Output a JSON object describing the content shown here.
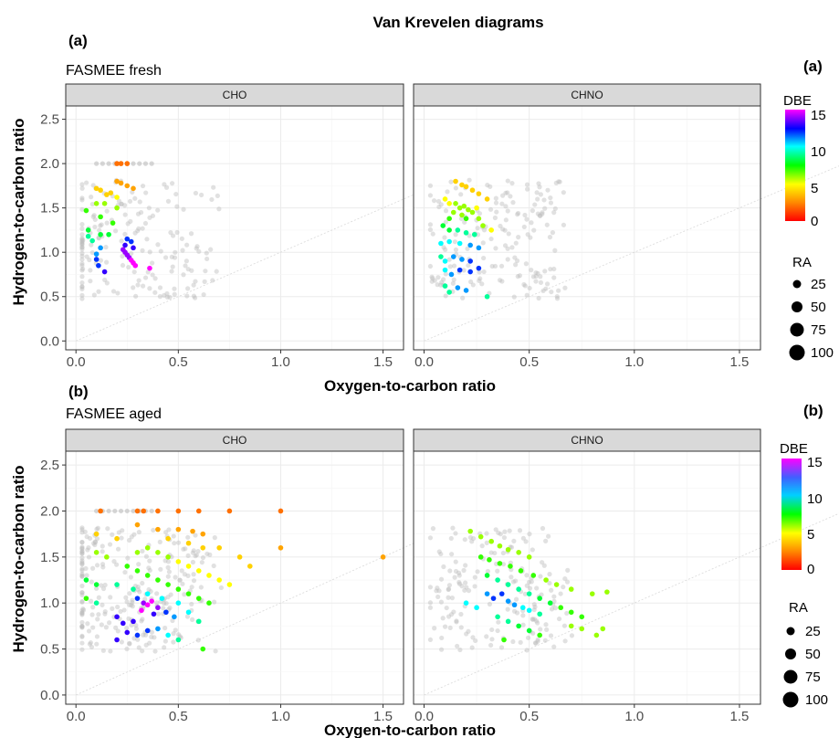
{
  "title": "Van Krevelen diagrams",
  "colors": {
    "panel_border": "#333333",
    "strip_fill": "#d9d9d9",
    "grid": "#ebebeb",
    "background_point": "#bdbdbd",
    "one_to_one_line": "#d9d9d9",
    "dbe_scale": [
      "#ff0000",
      "#ff8c00",
      "#ffff00",
      "#00ff00",
      "#00ffff",
      "#0000ff",
      "#ff00ff"
    ]
  },
  "axes": {
    "xlabel": "Oxygen-to-carbon ratio",
    "ylabel": "Hydrogen-to-carbon ratio",
    "xticks": [
      "0.0",
      "0.5",
      "1.0",
      "1.5"
    ],
    "yticks": [
      "0.0",
      "0.5",
      "1.0",
      "1.5",
      "2.0",
      "2.5"
    ]
  },
  "rows": [
    {
      "tag": "(a)",
      "subtitle": "FASMEE fresh",
      "legend_tag": "(a)",
      "dbe_title": "DBE",
      "dbe_ticks": [
        "15",
        "10",
        "5",
        "0"
      ],
      "ra_title": "RA",
      "ra_ticks": [
        "25",
        "50",
        "75",
        "100"
      ]
    },
    {
      "tag": "(b)",
      "subtitle": "FASMEE aged",
      "legend_tag": "(b)",
      "dbe_title": "DBE",
      "dbe_ticks": [
        "15",
        "10",
        "5",
        "0"
      ],
      "ra_title": "RA",
      "ra_ticks": [
        "25",
        "50",
        "75",
        "100"
      ]
    }
  ],
  "chart_data": [
    {
      "type": "scatter",
      "title": "FASMEE fresh — CHO",
      "panel": "CHO",
      "xlabel": "Oxygen-to-carbon ratio",
      "ylabel": "Hydrogen-to-carbon ratio",
      "xlim": [
        -0.05,
        1.6
      ],
      "ylim": [
        -0.1,
        2.65
      ],
      "grid": true,
      "color_by": "DBE",
      "points": [
        {
          "x": 0.2,
          "y": 2.0,
          "dbe": 2
        },
        {
          "x": 0.22,
          "y": 2.0,
          "dbe": 2
        },
        {
          "x": 0.25,
          "y": 2.0,
          "dbe": 2
        },
        {
          "x": 0.2,
          "y": 1.8,
          "dbe": 3
        },
        {
          "x": 0.22,
          "y": 1.78,
          "dbe": 3
        },
        {
          "x": 0.25,
          "y": 1.75,
          "dbe": 3
        },
        {
          "x": 0.28,
          "y": 1.72,
          "dbe": 3
        },
        {
          "x": 0.1,
          "y": 1.72,
          "dbe": 4
        },
        {
          "x": 0.12,
          "y": 1.7,
          "dbe": 4
        },
        {
          "x": 0.15,
          "y": 1.65,
          "dbe": 4
        },
        {
          "x": 0.17,
          "y": 1.67,
          "dbe": 4
        },
        {
          "x": 0.2,
          "y": 1.62,
          "dbe": 5
        },
        {
          "x": 0.1,
          "y": 1.55,
          "dbe": 6
        },
        {
          "x": 0.14,
          "y": 1.55,
          "dbe": 6
        },
        {
          "x": 0.2,
          "y": 1.5,
          "dbe": 6
        },
        {
          "x": 0.05,
          "y": 1.47,
          "dbe": 7
        },
        {
          "x": 0.12,
          "y": 1.4,
          "dbe": 7
        },
        {
          "x": 0.18,
          "y": 1.33,
          "dbe": 7
        },
        {
          "x": 0.06,
          "y": 1.25,
          "dbe": 8
        },
        {
          "x": 0.12,
          "y": 1.2,
          "dbe": 8
        },
        {
          "x": 0.16,
          "y": 1.2,
          "dbe": 8
        },
        {
          "x": 0.08,
          "y": 1.13,
          "dbe": 9
        },
        {
          "x": 0.06,
          "y": 1.18,
          "dbe": 9
        },
        {
          "x": 0.12,
          "y": 1.05,
          "dbe": 11
        },
        {
          "x": 0.1,
          "y": 0.98,
          "dbe": 11
        },
        {
          "x": 0.1,
          "y": 0.92,
          "dbe": 12
        },
        {
          "x": 0.11,
          "y": 0.85,
          "dbe": 12
        },
        {
          "x": 0.14,
          "y": 0.78,
          "dbe": 13
        },
        {
          "x": 0.25,
          "y": 1.15,
          "dbe": 12
        },
        {
          "x": 0.27,
          "y": 1.12,
          "dbe": 12
        },
        {
          "x": 0.28,
          "y": 1.05,
          "dbe": 13
        },
        {
          "x": 0.24,
          "y": 1.08,
          "dbe": 13
        },
        {
          "x": 0.23,
          "y": 1.03,
          "dbe": 14
        },
        {
          "x": 0.24,
          "y": 1.0,
          "dbe": 14
        },
        {
          "x": 0.25,
          "y": 0.97,
          "dbe": 14
        },
        {
          "x": 0.26,
          "y": 0.94,
          "dbe": 14
        },
        {
          "x": 0.27,
          "y": 0.91,
          "dbe": 15
        },
        {
          "x": 0.28,
          "y": 0.88,
          "dbe": 15
        },
        {
          "x": 0.29,
          "y": 0.85,
          "dbe": 15
        },
        {
          "x": 0.36,
          "y": 0.82,
          "dbe": 15
        }
      ]
    },
    {
      "type": "scatter",
      "title": "FASMEE fresh — CHNO",
      "panel": "CHNO",
      "xlabel": "Oxygen-to-carbon ratio",
      "ylabel": "Hydrogen-to-carbon ratio",
      "xlim": [
        -0.05,
        1.6
      ],
      "ylim": [
        -0.1,
        2.65
      ],
      "grid": true,
      "color_by": "DBE",
      "points": [
        {
          "x": 0.15,
          "y": 1.8,
          "dbe": 4
        },
        {
          "x": 0.18,
          "y": 1.76,
          "dbe": 4
        },
        {
          "x": 0.2,
          "y": 1.74,
          "dbe": 4
        },
        {
          "x": 0.23,
          "y": 1.7,
          "dbe": 4
        },
        {
          "x": 0.26,
          "y": 1.66,
          "dbe": 4
        },
        {
          "x": 0.3,
          "y": 1.6,
          "dbe": 4
        },
        {
          "x": 0.1,
          "y": 1.6,
          "dbe": 5
        },
        {
          "x": 0.12,
          "y": 1.55,
          "dbe": 5
        },
        {
          "x": 0.15,
          "y": 1.55,
          "dbe": 6
        },
        {
          "x": 0.17,
          "y": 1.5,
          "dbe": 6
        },
        {
          "x": 0.19,
          "y": 1.52,
          "dbe": 6
        },
        {
          "x": 0.21,
          "y": 1.48,
          "dbe": 6
        },
        {
          "x": 0.23,
          "y": 1.45,
          "dbe": 6
        },
        {
          "x": 0.25,
          "y": 1.5,
          "dbe": 5
        },
        {
          "x": 0.18,
          "y": 1.42,
          "dbe": 6
        },
        {
          "x": 0.14,
          "y": 1.45,
          "dbe": 6
        },
        {
          "x": 0.12,
          "y": 1.38,
          "dbe": 7
        },
        {
          "x": 0.2,
          "y": 1.38,
          "dbe": 7
        },
        {
          "x": 0.26,
          "y": 1.38,
          "dbe": 6
        },
        {
          "x": 0.28,
          "y": 1.3,
          "dbe": 6
        },
        {
          "x": 0.32,
          "y": 1.25,
          "dbe": 5
        },
        {
          "x": 0.09,
          "y": 1.3,
          "dbe": 8
        },
        {
          "x": 0.12,
          "y": 1.25,
          "dbe": 8
        },
        {
          "x": 0.16,
          "y": 1.25,
          "dbe": 9
        },
        {
          "x": 0.2,
          "y": 1.22,
          "dbe": 9
        },
        {
          "x": 0.24,
          "y": 1.2,
          "dbe": 9
        },
        {
          "x": 0.08,
          "y": 1.1,
          "dbe": 10
        },
        {
          "x": 0.12,
          "y": 1.12,
          "dbe": 10
        },
        {
          "x": 0.17,
          "y": 1.1,
          "dbe": 10
        },
        {
          "x": 0.22,
          "y": 1.08,
          "dbe": 11
        },
        {
          "x": 0.26,
          "y": 1.05,
          "dbe": 11
        },
        {
          "x": 0.08,
          "y": 0.95,
          "dbe": 9
        },
        {
          "x": 0.1,
          "y": 0.9,
          "dbe": 10
        },
        {
          "x": 0.14,
          "y": 0.95,
          "dbe": 11
        },
        {
          "x": 0.18,
          "y": 0.92,
          "dbe": 11
        },
        {
          "x": 0.22,
          "y": 0.9,
          "dbe": 12
        },
        {
          "x": 0.1,
          "y": 0.8,
          "dbe": 10
        },
        {
          "x": 0.13,
          "y": 0.75,
          "dbe": 11
        },
        {
          "x": 0.17,
          "y": 0.8,
          "dbe": 12
        },
        {
          "x": 0.22,
          "y": 0.78,
          "dbe": 12
        },
        {
          "x": 0.26,
          "y": 0.82,
          "dbe": 12
        },
        {
          "x": 0.1,
          "y": 0.62,
          "dbe": 9
        },
        {
          "x": 0.12,
          "y": 0.55,
          "dbe": 9
        },
        {
          "x": 0.16,
          "y": 0.6,
          "dbe": 11
        },
        {
          "x": 0.2,
          "y": 0.57,
          "dbe": 11
        },
        {
          "x": 0.3,
          "y": 0.5,
          "dbe": 9
        }
      ]
    },
    {
      "type": "scatter",
      "title": "FASMEE aged — CHO",
      "panel": "CHO",
      "xlabel": "Oxygen-to-carbon ratio",
      "ylabel": "Hydrogen-to-carbon ratio",
      "xlim": [
        -0.05,
        1.6
      ],
      "ylim": [
        -0.1,
        2.65
      ],
      "grid": true,
      "color_by": "DBE",
      "points": [
        {
          "x": 0.12,
          "y": 2.0,
          "dbe": 2
        },
        {
          "x": 0.3,
          "y": 2.0,
          "dbe": 2
        },
        {
          "x": 0.33,
          "y": 2.0,
          "dbe": 2
        },
        {
          "x": 0.4,
          "y": 2.0,
          "dbe": 2
        },
        {
          "x": 0.5,
          "y": 2.0,
          "dbe": 2
        },
        {
          "x": 0.6,
          "y": 2.0,
          "dbe": 2
        },
        {
          "x": 0.75,
          "y": 2.0,
          "dbe": 2
        },
        {
          "x": 1.0,
          "y": 2.0,
          "dbe": 2
        },
        {
          "x": 0.3,
          "y": 1.85,
          "dbe": 3
        },
        {
          "x": 0.4,
          "y": 1.8,
          "dbe": 3
        },
        {
          "x": 0.5,
          "y": 1.8,
          "dbe": 3
        },
        {
          "x": 0.57,
          "y": 1.78,
          "dbe": 3
        },
        {
          "x": 0.62,
          "y": 1.75,
          "dbe": 3
        },
        {
          "x": 1.5,
          "y": 1.5,
          "dbe": 3
        },
        {
          "x": 1.0,
          "y": 1.6,
          "dbe": 3
        },
        {
          "x": 0.1,
          "y": 1.75,
          "dbe": 4
        },
        {
          "x": 0.2,
          "y": 1.7,
          "dbe": 4
        },
        {
          "x": 0.45,
          "y": 1.7,
          "dbe": 4
        },
        {
          "x": 0.55,
          "y": 1.65,
          "dbe": 4
        },
        {
          "x": 0.62,
          "y": 1.6,
          "dbe": 4
        },
        {
          "x": 0.7,
          "y": 1.6,
          "dbe": 4
        },
        {
          "x": 0.8,
          "y": 1.5,
          "dbe": 4
        },
        {
          "x": 0.85,
          "y": 1.4,
          "dbe": 4
        },
        {
          "x": 0.1,
          "y": 1.55,
          "dbe": 6
        },
        {
          "x": 0.15,
          "y": 1.5,
          "dbe": 6
        },
        {
          "x": 0.3,
          "y": 1.55,
          "dbe": 6
        },
        {
          "x": 0.35,
          "y": 1.6,
          "dbe": 6
        },
        {
          "x": 0.4,
          "y": 1.55,
          "dbe": 6
        },
        {
          "x": 0.45,
          "y": 1.5,
          "dbe": 6
        },
        {
          "x": 0.5,
          "y": 1.45,
          "dbe": 5
        },
        {
          "x": 0.55,
          "y": 1.4,
          "dbe": 5
        },
        {
          "x": 0.6,
          "y": 1.35,
          "dbe": 5
        },
        {
          "x": 0.65,
          "y": 1.3,
          "dbe": 5
        },
        {
          "x": 0.7,
          "y": 1.25,
          "dbe": 5
        },
        {
          "x": 0.75,
          "y": 1.2,
          "dbe": 5
        },
        {
          "x": 0.25,
          "y": 1.4,
          "dbe": 7
        },
        {
          "x": 0.3,
          "y": 1.35,
          "dbe": 7
        },
        {
          "x": 0.35,
          "y": 1.3,
          "dbe": 7
        },
        {
          "x": 0.4,
          "y": 1.25,
          "dbe": 7
        },
        {
          "x": 0.45,
          "y": 1.2,
          "dbe": 7
        },
        {
          "x": 0.5,
          "y": 1.15,
          "dbe": 7
        },
        {
          "x": 0.55,
          "y": 1.1,
          "dbe": 7
        },
        {
          "x": 0.6,
          "y": 1.05,
          "dbe": 7
        },
        {
          "x": 0.65,
          "y": 1.0,
          "dbe": 7
        },
        {
          "x": 0.05,
          "y": 1.25,
          "dbe": 8
        },
        {
          "x": 0.1,
          "y": 1.2,
          "dbe": 8
        },
        {
          "x": 0.2,
          "y": 1.2,
          "dbe": 9
        },
        {
          "x": 0.28,
          "y": 1.15,
          "dbe": 9
        },
        {
          "x": 0.35,
          "y": 1.1,
          "dbe": 10
        },
        {
          "x": 0.42,
          "y": 1.05,
          "dbe": 10
        },
        {
          "x": 0.5,
          "y": 1.0,
          "dbe": 10
        },
        {
          "x": 0.55,
          "y": 0.9,
          "dbe": 10
        },
        {
          "x": 0.6,
          "y": 0.8,
          "dbe": 9
        },
        {
          "x": 0.05,
          "y": 1.05,
          "dbe": 7
        },
        {
          "x": 0.1,
          "y": 1.0,
          "dbe": 9
        },
        {
          "x": 0.3,
          "y": 1.05,
          "dbe": 12
        },
        {
          "x": 0.33,
          "y": 1.0,
          "dbe": 14
        },
        {
          "x": 0.35,
          "y": 0.98,
          "dbe": 15
        },
        {
          "x": 0.37,
          "y": 1.02,
          "dbe": 15
        },
        {
          "x": 0.4,
          "y": 0.95,
          "dbe": 14
        },
        {
          "x": 0.32,
          "y": 0.92,
          "dbe": 15
        },
        {
          "x": 0.38,
          "y": 0.88,
          "dbe": 13
        },
        {
          "x": 0.44,
          "y": 0.9,
          "dbe": 12
        },
        {
          "x": 0.48,
          "y": 0.85,
          "dbe": 11
        },
        {
          "x": 0.2,
          "y": 0.85,
          "dbe": 13
        },
        {
          "x": 0.23,
          "y": 0.78,
          "dbe": 13
        },
        {
          "x": 0.28,
          "y": 0.8,
          "dbe": 13
        },
        {
          "x": 0.25,
          "y": 0.68,
          "dbe": 13
        },
        {
          "x": 0.3,
          "y": 0.65,
          "dbe": 12
        },
        {
          "x": 0.2,
          "y": 0.6,
          "dbe": 13
        },
        {
          "x": 0.35,
          "y": 0.7,
          "dbe": 12
        },
        {
          "x": 0.4,
          "y": 0.72,
          "dbe": 11
        },
        {
          "x": 0.45,
          "y": 0.65,
          "dbe": 10
        },
        {
          "x": 0.5,
          "y": 0.6,
          "dbe": 9
        },
        {
          "x": 0.62,
          "y": 0.5,
          "dbe": 7
        }
      ]
    },
    {
      "type": "scatter",
      "title": "FASMEE aged — CHNO",
      "panel": "CHNO",
      "xlabel": "Oxygen-to-carbon ratio",
      "ylabel": "Hydrogen-to-carbon ratio",
      "xlim": [
        -0.05,
        1.6
      ],
      "ylim": [
        -0.1,
        2.65
      ],
      "grid": true,
      "color_by": "DBE",
      "points": [
        {
          "x": 0.22,
          "y": 1.78,
          "dbe": 6
        },
        {
          "x": 0.27,
          "y": 1.72,
          "dbe": 6
        },
        {
          "x": 0.32,
          "y": 1.67,
          "dbe": 6
        },
        {
          "x": 0.36,
          "y": 1.62,
          "dbe": 6
        },
        {
          "x": 0.4,
          "y": 1.58,
          "dbe": 6
        },
        {
          "x": 0.45,
          "y": 1.55,
          "dbe": 6
        },
        {
          "x": 0.5,
          "y": 1.5,
          "dbe": 6
        },
        {
          "x": 0.27,
          "y": 1.5,
          "dbe": 7
        },
        {
          "x": 0.31,
          "y": 1.47,
          "dbe": 7
        },
        {
          "x": 0.36,
          "y": 1.43,
          "dbe": 7
        },
        {
          "x": 0.41,
          "y": 1.4,
          "dbe": 7
        },
        {
          "x": 0.46,
          "y": 1.35,
          "dbe": 7
        },
        {
          "x": 0.52,
          "y": 1.3,
          "dbe": 7
        },
        {
          "x": 0.58,
          "y": 1.25,
          "dbe": 6
        },
        {
          "x": 0.63,
          "y": 1.2,
          "dbe": 6
        },
        {
          "x": 0.7,
          "y": 1.15,
          "dbe": 6
        },
        {
          "x": 0.8,
          "y": 1.1,
          "dbe": 6
        },
        {
          "x": 0.87,
          "y": 1.12,
          "dbe": 6
        },
        {
          "x": 0.3,
          "y": 1.3,
          "dbe": 8
        },
        {
          "x": 0.35,
          "y": 1.25,
          "dbe": 9
        },
        {
          "x": 0.4,
          "y": 1.2,
          "dbe": 9
        },
        {
          "x": 0.45,
          "y": 1.15,
          "dbe": 9
        },
        {
          "x": 0.5,
          "y": 1.1,
          "dbe": 9
        },
        {
          "x": 0.55,
          "y": 1.05,
          "dbe": 8
        },
        {
          "x": 0.6,
          "y": 1.0,
          "dbe": 8
        },
        {
          "x": 0.65,
          "y": 0.95,
          "dbe": 7
        },
        {
          "x": 0.7,
          "y": 0.9,
          "dbe": 7
        },
        {
          "x": 0.75,
          "y": 0.85,
          "dbe": 7
        },
        {
          "x": 0.3,
          "y": 1.1,
          "dbe": 11
        },
        {
          "x": 0.33,
          "y": 1.05,
          "dbe": 12
        },
        {
          "x": 0.37,
          "y": 1.1,
          "dbe": 12
        },
        {
          "x": 0.4,
          "y": 1.02,
          "dbe": 11
        },
        {
          "x": 0.43,
          "y": 0.98,
          "dbe": 11
        },
        {
          "x": 0.47,
          "y": 0.95,
          "dbe": 10
        },
        {
          "x": 0.5,
          "y": 0.92,
          "dbe": 10
        },
        {
          "x": 0.55,
          "y": 0.88,
          "dbe": 9
        },
        {
          "x": 0.2,
          "y": 1.0,
          "dbe": 10
        },
        {
          "x": 0.25,
          "y": 0.95,
          "dbe": 10
        },
        {
          "x": 0.35,
          "y": 0.85,
          "dbe": 9
        },
        {
          "x": 0.4,
          "y": 0.8,
          "dbe": 9
        },
        {
          "x": 0.45,
          "y": 0.75,
          "dbe": 8
        },
        {
          "x": 0.5,
          "y": 0.7,
          "dbe": 8
        },
        {
          "x": 0.55,
          "y": 0.65,
          "dbe": 7
        },
        {
          "x": 0.38,
          "y": 0.6,
          "dbe": 7
        },
        {
          "x": 0.7,
          "y": 0.75,
          "dbe": 6
        },
        {
          "x": 0.75,
          "y": 0.72,
          "dbe": 6
        },
        {
          "x": 0.82,
          "y": 0.65,
          "dbe": 6
        },
        {
          "x": 0.85,
          "y": 0.72,
          "dbe": 6
        }
      ]
    }
  ]
}
